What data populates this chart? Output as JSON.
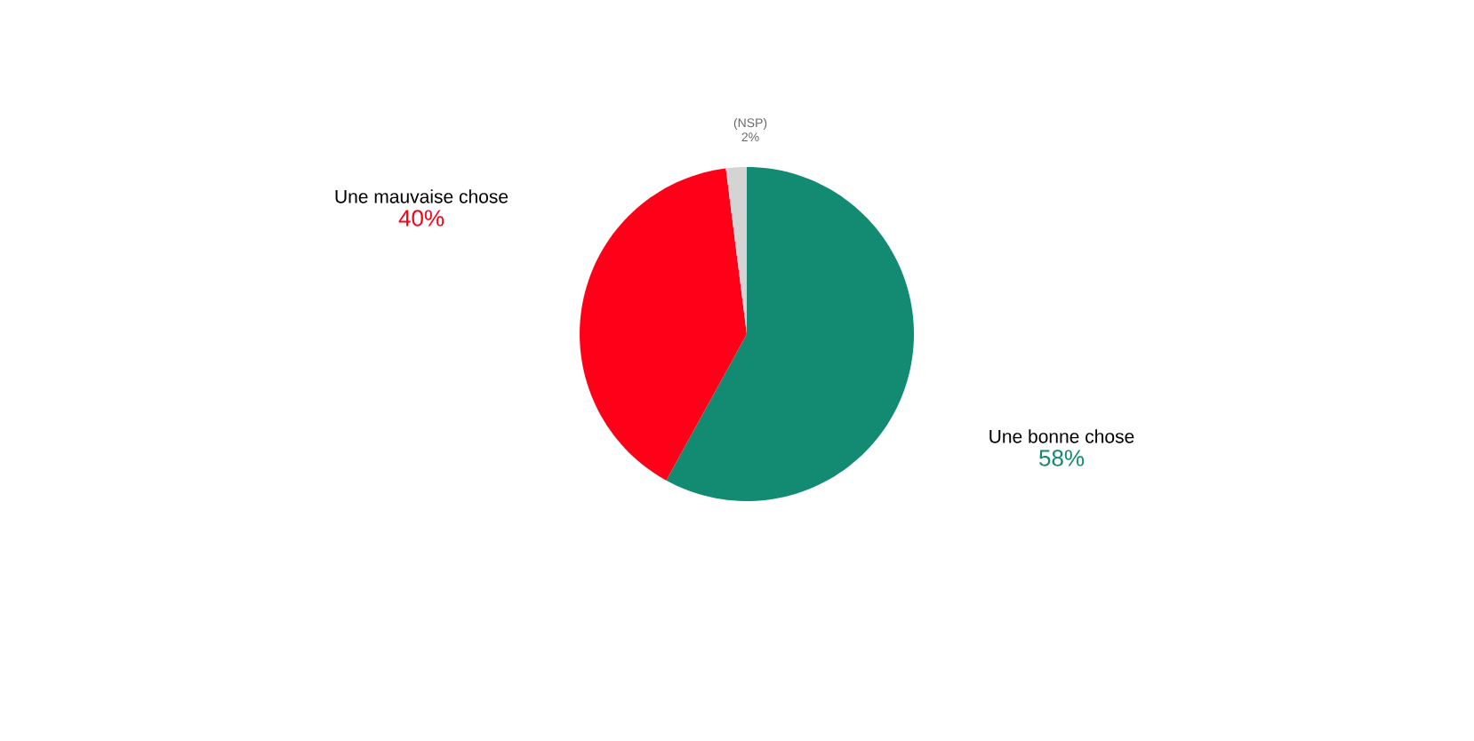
{
  "chart_data": {
    "type": "pie",
    "categories": [
      "Une bonne chose",
      "Une mauvaise chose",
      "(NSP)"
    ],
    "values": [
      58,
      40,
      2
    ],
    "colors": [
      "#138a72",
      "#ff0018",
      "#d4d4d4"
    ],
    "value_labels": [
      "58%",
      "40%",
      "2%"
    ]
  }
}
